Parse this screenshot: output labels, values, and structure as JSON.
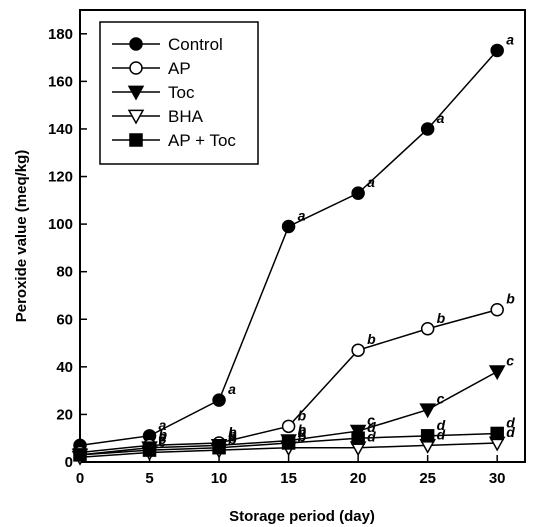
{
  "chart_data": {
    "type": "line",
    "xlabel": "Storage period (day)",
    "ylabel": "Peroxide value (meq/kg)",
    "xlim": [
      0,
      32
    ],
    "ylim": [
      0,
      190
    ],
    "xticks": [
      0,
      5,
      10,
      15,
      20,
      25,
      30
    ],
    "yticks": [
      0,
      20,
      40,
      60,
      80,
      100,
      120,
      140,
      160,
      180
    ],
    "grid": false,
    "legend_position": "top-left",
    "x": [
      0,
      5,
      10,
      15,
      20,
      25,
      30
    ],
    "series": [
      {
        "name": "Control",
        "marker": "filled-circle",
        "values": [
          7,
          11,
          26,
          99,
          113,
          140,
          173
        ],
        "labels": [
          "",
          "a",
          "a",
          "a",
          "a",
          "a",
          "a"
        ]
      },
      {
        "name": "AP",
        "marker": "open-circle",
        "values": [
          4,
          7,
          8,
          15,
          47,
          56,
          64
        ],
        "labels": [
          "",
          "b",
          "b",
          "b",
          "b",
          "b",
          "b"
        ]
      },
      {
        "name": "Toc",
        "marker": "filled-triangle-down",
        "values": [
          3,
          6,
          7,
          9,
          13,
          22,
          38
        ],
        "labels": [
          "",
          "c",
          "b",
          "b",
          "c",
          "c",
          "c"
        ]
      },
      {
        "name": "BHA",
        "marker": "open-triangle-down",
        "values": [
          2,
          4,
          5,
          6,
          6,
          7,
          8
        ],
        "labels": [
          "",
          "c",
          "b",
          "b",
          "d",
          "d",
          "d"
        ]
      },
      {
        "name": "AP + Toc",
        "marker": "filled-square",
        "values": [
          3,
          5,
          6,
          8,
          10,
          11,
          12
        ],
        "labels": [
          "",
          "c",
          "b",
          "b",
          "d",
          "d",
          "d"
        ]
      }
    ]
  }
}
